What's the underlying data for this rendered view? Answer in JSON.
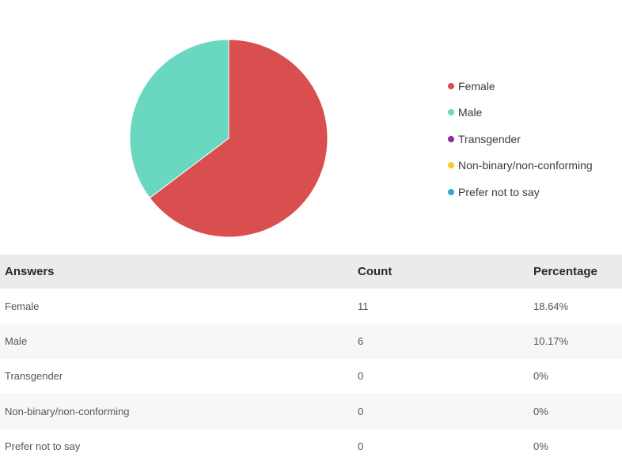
{
  "chart_data": {
    "type": "pie",
    "title": "",
    "slices": [
      {
        "label": "Female",
        "value": 11,
        "color": "#d94f4f"
      },
      {
        "label": "Male",
        "value": 6,
        "color": "#6ad8c0"
      },
      {
        "label": "Transgender",
        "value": 0,
        "color": "#8e2a9a"
      },
      {
        "label": "Non-binary/non-conforming",
        "value": 0,
        "color": "#f5cc27"
      },
      {
        "label": "Prefer not to say",
        "value": 0,
        "color": "#2fa7d8"
      }
    ],
    "legend_position": "right"
  },
  "table": {
    "headers": [
      "Answers",
      "Count",
      "Percentage"
    ],
    "rows": [
      {
        "answer": "Female",
        "count": "11",
        "percentage": "18.64%"
      },
      {
        "answer": "Male",
        "count": "6",
        "percentage": "10.17%"
      },
      {
        "answer": "Transgender",
        "count": "0",
        "percentage": "0%"
      },
      {
        "answer": "Non-binary/non-conforming",
        "count": "0",
        "percentage": "0%"
      },
      {
        "answer": "Prefer not to say",
        "count": "0",
        "percentage": "0%"
      }
    ]
  }
}
